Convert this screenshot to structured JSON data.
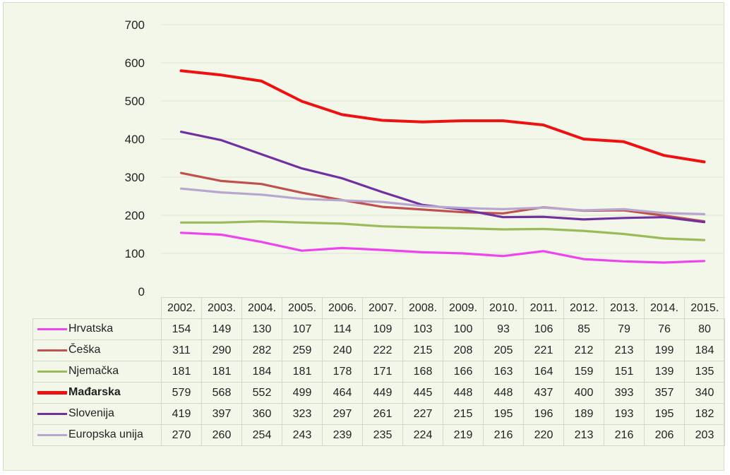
{
  "chart_data": {
    "type": "line",
    "title": "",
    "xlabel": "",
    "ylabel": "",
    "ylim": [
      0,
      700
    ],
    "yticks": [
      "0",
      "100",
      "200",
      "300",
      "400",
      "500",
      "600",
      "700"
    ],
    "grid": true,
    "legend": "data table below chart",
    "categories": [
      "2002.",
      "2003.",
      "2004.",
      "2005.",
      "2006.",
      "2007.",
      "2008.",
      "2009.",
      "2010.",
      "2011.",
      "2012.",
      "2013.",
      "2014.",
      "2015."
    ],
    "series": [
      {
        "name": "Hrvatska",
        "color": "#ee44ee",
        "emphasis": false,
        "values": [
          154,
          149,
          130,
          107,
          114,
          109,
          103,
          100,
          93,
          106,
          85,
          79,
          76,
          80
        ]
      },
      {
        "name": "Češka",
        "color": "#c0504d",
        "emphasis": false,
        "values": [
          311,
          290,
          282,
          259,
          240,
          222,
          215,
          208,
          205,
          221,
          212,
          213,
          199,
          184
        ]
      },
      {
        "name": "Njemačka",
        "color": "#9bbb59",
        "emphasis": false,
        "values": [
          181,
          181,
          184,
          181,
          178,
          171,
          168,
          166,
          163,
          164,
          159,
          151,
          139,
          135
        ]
      },
      {
        "name": "Mađarska",
        "color": "#ee1111",
        "emphasis": true,
        "values": [
          579,
          568,
          552,
          499,
          464,
          449,
          445,
          448,
          448,
          437,
          400,
          393,
          357,
          340
        ]
      },
      {
        "name": "Slovenija",
        "color": "#7030a0",
        "emphasis": false,
        "values": [
          419,
          397,
          360,
          323,
          297,
          261,
          227,
          215,
          195,
          196,
          189,
          193,
          195,
          182
        ]
      },
      {
        "name": "Europska unija",
        "color": "#b7a6d0",
        "emphasis": false,
        "values": [
          270,
          260,
          254,
          243,
          239,
          235,
          224,
          219,
          216,
          220,
          213,
          216,
          206,
          203
        ]
      }
    ]
  }
}
